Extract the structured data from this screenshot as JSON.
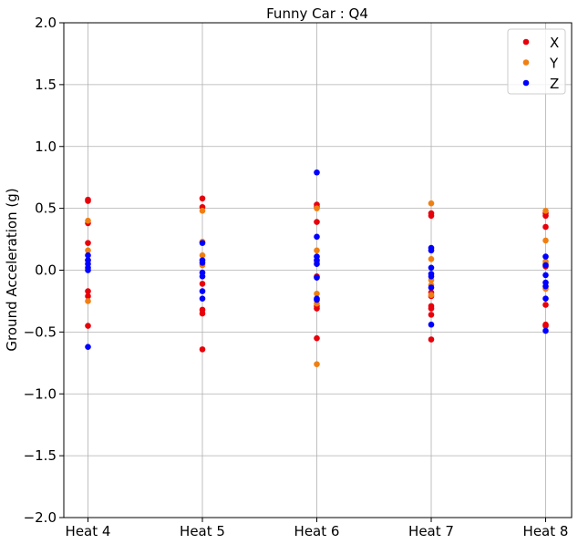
{
  "chart_data": {
    "type": "scatter",
    "title": "Funny Car : Q4",
    "xlabel": "",
    "ylabel": "Ground Acceleration (g)",
    "categories": [
      "Heat 4",
      "Heat 5",
      "Heat 6",
      "Heat 7",
      "Heat 8"
    ],
    "ylim": [
      -2.0,
      2.0
    ],
    "yticks": [
      -2.0,
      -1.5,
      -1.0,
      -0.5,
      0.0,
      0.5,
      1.0,
      1.5,
      2.0
    ],
    "ytick_labels": [
      "−2.0",
      "−1.5",
      "−1.0",
      "−0.5",
      "0.0",
      "0.5",
      "1.0",
      "1.5",
      "2.0"
    ],
    "grid": true,
    "legend_position": "top-right",
    "series": [
      {
        "name": "X",
        "color": "#e8000b",
        "points": [
          [
            0,
            0.57
          ],
          [
            0,
            0.56
          ],
          [
            0,
            0.38
          ],
          [
            0,
            0.22
          ],
          [
            0,
            -0.17
          ],
          [
            0,
            -0.21
          ],
          [
            0,
            -0.45
          ],
          [
            1,
            0.58
          ],
          [
            1,
            0.51
          ],
          [
            1,
            -0.11
          ],
          [
            1,
            -0.32
          ],
          [
            1,
            -0.35
          ],
          [
            1,
            -0.64
          ],
          [
            2,
            0.53
          ],
          [
            2,
            0.51
          ],
          [
            2,
            0.39
          ],
          [
            2,
            -0.05
          ],
          [
            2,
            -0.29
          ],
          [
            2,
            -0.31
          ],
          [
            2,
            -0.55
          ],
          [
            3,
            0.46
          ],
          [
            3,
            0.44
          ],
          [
            3,
            -0.18
          ],
          [
            3,
            -0.21
          ],
          [
            3,
            -0.29
          ],
          [
            3,
            -0.31
          ],
          [
            3,
            -0.36
          ],
          [
            3,
            -0.56
          ],
          [
            4,
            0.46
          ],
          [
            4,
            0.44
          ],
          [
            4,
            0.35
          ],
          [
            4,
            0.03
          ],
          [
            4,
            -0.28
          ],
          [
            4,
            -0.44
          ],
          [
            4,
            -0.45
          ]
        ]
      },
      {
        "name": "Y",
        "color": "#f07f12",
        "points": [
          [
            0,
            0.4
          ],
          [
            0,
            0.16
          ],
          [
            0,
            0.08
          ],
          [
            0,
            -0.25
          ],
          [
            1,
            0.48
          ],
          [
            1,
            0.23
          ],
          [
            1,
            0.12
          ],
          [
            1,
            0.04
          ],
          [
            2,
            0.5
          ],
          [
            2,
            0.16
          ],
          [
            2,
            0.07
          ],
          [
            2,
            -0.19
          ],
          [
            2,
            -0.27
          ],
          [
            2,
            -0.76
          ],
          [
            3,
            0.54
          ],
          [
            3,
            0.16
          ],
          [
            3,
            0.09
          ],
          [
            3,
            -0.08
          ],
          [
            3,
            -0.12
          ],
          [
            3,
            -0.2
          ],
          [
            4,
            0.48
          ],
          [
            4,
            0.24
          ],
          [
            4,
            0.07
          ],
          [
            4,
            0.05
          ],
          [
            4,
            -0.15
          ]
        ]
      },
      {
        "name": "Z",
        "color": "#0000ff",
        "points": [
          [
            0,
            0.12
          ],
          [
            0,
            0.08
          ],
          [
            0,
            0.05
          ],
          [
            0,
            0.02
          ],
          [
            0,
            0.0
          ],
          [
            0,
            -0.62
          ],
          [
            1,
            0.22
          ],
          [
            1,
            0.08
          ],
          [
            1,
            0.06
          ],
          [
            1,
            -0.02
          ],
          [
            1,
            -0.05
          ],
          [
            1,
            -0.17
          ],
          [
            1,
            -0.23
          ],
          [
            2,
            0.79
          ],
          [
            2,
            0.27
          ],
          [
            2,
            0.11
          ],
          [
            2,
            0.08
          ],
          [
            2,
            0.05
          ],
          [
            2,
            -0.06
          ],
          [
            2,
            -0.23
          ],
          [
            2,
            -0.24
          ],
          [
            3,
            0.18
          ],
          [
            3,
            0.16
          ],
          [
            3,
            0.02
          ],
          [
            3,
            -0.03
          ],
          [
            3,
            -0.05
          ],
          [
            3,
            -0.14
          ],
          [
            3,
            -0.44
          ],
          [
            4,
            0.11
          ],
          [
            4,
            0.04
          ],
          [
            4,
            -0.04
          ],
          [
            4,
            -0.1
          ],
          [
            4,
            -0.13
          ],
          [
            4,
            -0.23
          ],
          [
            4,
            -0.49
          ]
        ]
      }
    ]
  }
}
